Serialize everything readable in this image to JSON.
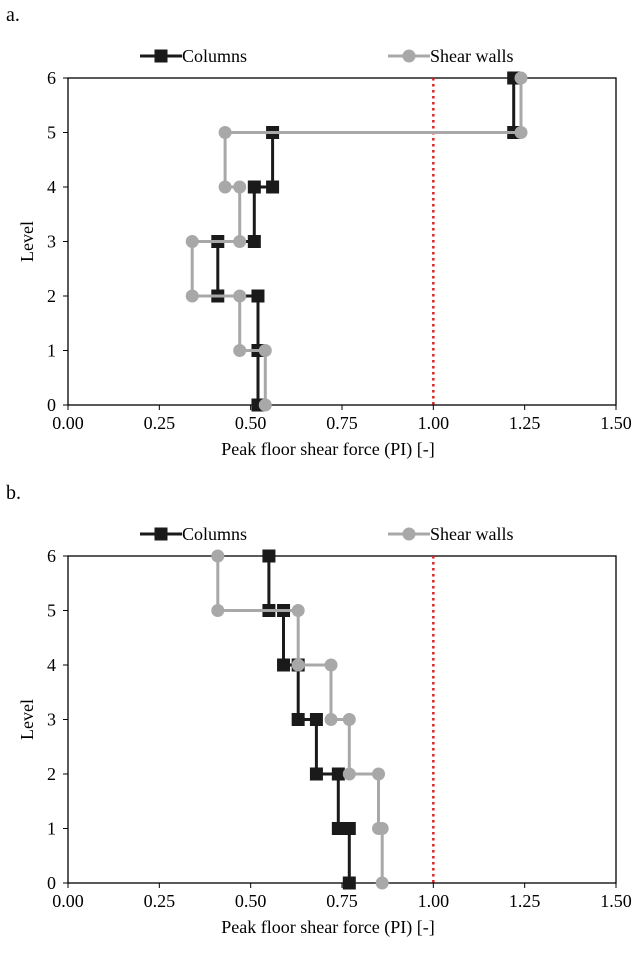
{
  "chart_data": [
    {
      "panel_label": "a.",
      "type": "line",
      "xlabel": "Peak floor shear force (PI) [-]",
      "ylabel": "Level",
      "xlim": [
        0,
        1.5
      ],
      "ylim": [
        0,
        6
      ],
      "x_ticks": [
        "0.00",
        "0.25",
        "0.50",
        "0.75",
        "1.00",
        "1.25",
        "1.50"
      ],
      "y_ticks": [
        "0",
        "1",
        "2",
        "3",
        "4",
        "5",
        "6"
      ],
      "reference_line": {
        "x": 1.0,
        "color": "#dd2222",
        "style": "dotted"
      },
      "legend_position": "top",
      "series": [
        {
          "name": "Columns",
          "color": "#1a1a1a",
          "marker": "square",
          "levels": [
            0,
            1,
            2,
            3,
            4,
            5,
            6
          ],
          "values": [
            0.52,
            0.52,
            0.41,
            0.51,
            0.56,
            1.22,
            1.22
          ]
        },
        {
          "name": "Shear walls",
          "color": "#a8a8a8",
          "marker": "circle",
          "levels": [
            0,
            1,
            2,
            3,
            4,
            5,
            6
          ],
          "values": [
            0.54,
            0.47,
            0.34,
            0.47,
            0.43,
            1.24,
            1.24
          ]
        }
      ]
    },
    {
      "panel_label": "b.",
      "type": "line",
      "xlabel": "Peak floor shear force (PI) [-]",
      "ylabel": "Level",
      "xlim": [
        0,
        1.5
      ],
      "ylim": [
        0,
        6
      ],
      "x_ticks": [
        "0.00",
        "0.25",
        "0.50",
        "0.75",
        "1.00",
        "1.25",
        "1.50"
      ],
      "y_ticks": [
        "0",
        "1",
        "2",
        "3",
        "4",
        "5",
        "6"
      ],
      "reference_line": {
        "x": 1.0,
        "color": "#dd2222",
        "style": "dotted"
      },
      "legend_position": "top",
      "series": [
        {
          "name": "Columns",
          "color": "#1a1a1a",
          "marker": "square",
          "levels": [
            0,
            1,
            2,
            3,
            4,
            5,
            6
          ],
          "values": [
            0.77,
            0.74,
            0.68,
            0.63,
            0.59,
            0.55,
            0.55
          ]
        },
        {
          "name": "Shear walls",
          "color": "#a8a8a8",
          "marker": "circle",
          "levels": [
            0,
            1,
            2,
            3,
            4,
            5,
            6
          ],
          "values": [
            0.86,
            0.85,
            0.77,
            0.72,
            0.63,
            0.41,
            0.41
          ]
        }
      ]
    }
  ]
}
